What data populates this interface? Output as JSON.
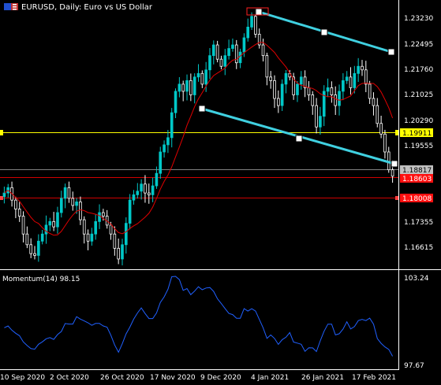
{
  "header": {
    "symbol_text": "EURUSD, Daily:  Euro vs US Dollar",
    "flag_icon": "eu-us-flag-icon"
  },
  "indicator": {
    "label": "Momentum(14) 98.15",
    "levels": [
      "103.24",
      "97.67"
    ]
  },
  "colors": {
    "background": "#000000",
    "bull_candle": "#00c8c8",
    "bear_candle": "#ffffff",
    "ma_line": "#e00000",
    "channel": "#40d0e0",
    "momentum": "#2060ff",
    "hline_yellow": "#ffff00",
    "hline_red": "#ff0000",
    "current_price_bg": "#c0c0c0"
  },
  "price_axis": {
    "ticks": [
      "1.23230",
      "1.22495",
      "1.21760",
      "1.21025",
      "1.20290",
      "1.19555",
      "1.17355",
      "1.16615"
    ],
    "yellow_level": "1.19911",
    "current_price": "1.18817",
    "red_level_1": "1.18603",
    "red_level_2": "1.18008"
  },
  "time_axis": {
    "ticks": [
      "10 Sep 2020",
      "2 Oct 2020",
      "26 Oct 2020",
      "17 Nov 2020",
      "9 Dec 2020",
      "4 Jan 2021",
      "26 Jan 2021",
      "17 Feb 2021"
    ]
  },
  "chart_data": {
    "type": "candlestick",
    "series": [
      {
        "name": "EURUSD",
        "close": [
          1.1835,
          1.185,
          1.1815,
          1.179,
          1.177,
          1.172,
          1.169,
          1.1665,
          1.166,
          1.17,
          1.172,
          1.1745,
          1.1755,
          1.174,
          1.178,
          1.182,
          1.185,
          1.182,
          1.18,
          1.181,
          1.176,
          1.172,
          1.17,
          1.172,
          1.1755,
          1.178,
          1.177,
          1.1745,
          1.172,
          1.168,
          1.165,
          1.169,
          1.175,
          1.1815,
          1.183,
          1.184,
          1.186,
          1.1835,
          1.183,
          1.1855,
          1.189,
          1.195,
          1.197,
          1.199,
          1.206,
          1.212,
          1.214,
          1.212,
          1.215,
          1.211,
          1.216,
          1.217,
          1.214,
          1.218,
          1.222,
          1.225,
          1.221,
          1.219,
          1.222,
          1.224,
          1.225,
          1.22,
          1.223,
          1.227,
          1.23,
          1.233,
          1.228,
          1.225,
          1.222,
          1.216,
          1.215,
          1.21,
          1.208,
          1.214,
          1.217,
          1.216,
          1.211,
          1.214,
          1.216,
          1.213,
          1.211,
          1.208,
          1.202,
          1.205,
          1.212,
          1.213,
          1.211,
          1.208,
          1.212,
          1.215,
          1.216,
          1.213,
          1.217,
          1.219,
          1.218,
          1.214,
          1.21,
          1.208,
          1.203,
          1.2,
          1.195,
          1.19,
          1.1882
        ]
      }
    ],
    "indicator_series": {
      "name": "Momentum(14)",
      "last": 98.15
    },
    "ylim": [
      1.163,
      1.2345
    ],
    "momentum_ylim": [
      97.67,
      103.24
    ]
  }
}
